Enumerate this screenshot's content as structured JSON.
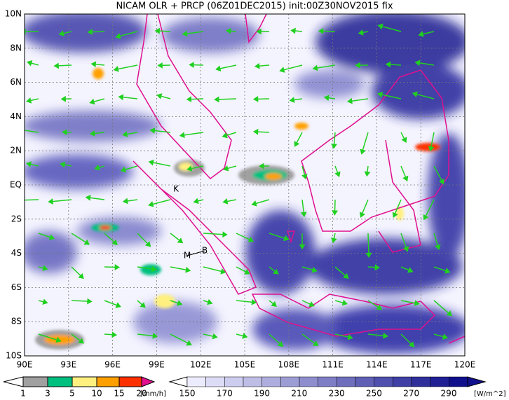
{
  "title": "NICAM OLR + PRCP (06Z01DEC2015) init:00Z30NOV2015 fix",
  "lon_labels": [
    "90E",
    "93E",
    "96E",
    "99E",
    "102E",
    "105E",
    "108E",
    "111E",
    "114E",
    "117E",
    "120E"
  ],
  "lat_labels": [
    "10N",
    "8N",
    "6N",
    "4N",
    "2N",
    "EQ",
    "2S",
    "4S",
    "6S",
    "8S",
    "10S"
  ],
  "markers": [
    {
      "label": "K"
    },
    {
      "label": "M"
    },
    {
      "label": "B"
    }
  ],
  "precip_colorbar": {
    "labels": [
      "1",
      "3",
      "5",
      "10",
      "15",
      "20"
    ],
    "unit": "[mm/h]"
  },
  "olr_colorbar": {
    "labels": [
      "150",
      "170",
      "190",
      "210",
      "230",
      "250",
      "270",
      "290"
    ],
    "unit": "[W/m^2]"
  }
}
